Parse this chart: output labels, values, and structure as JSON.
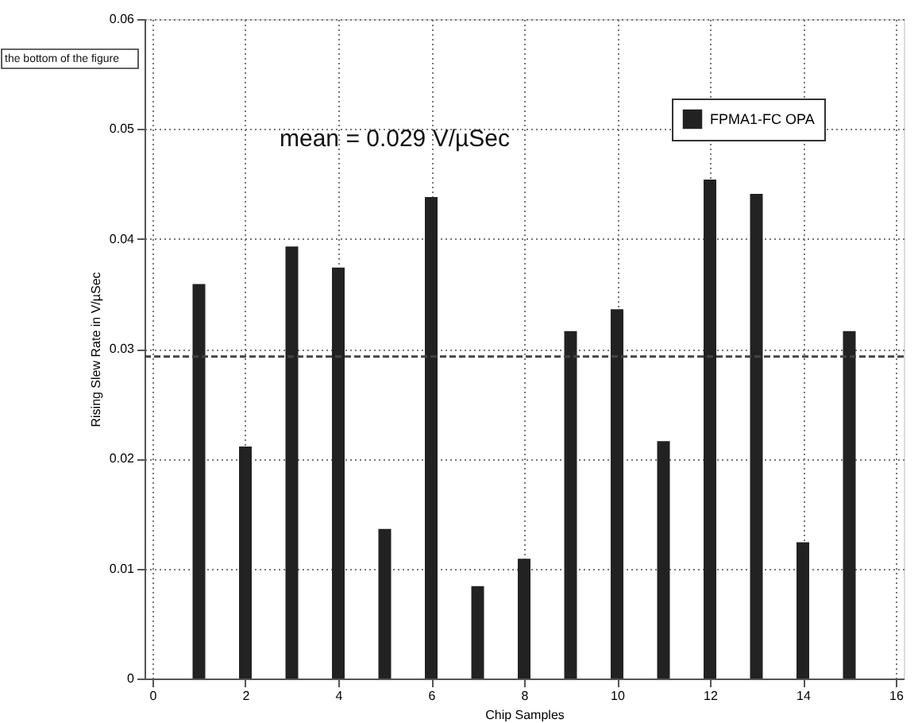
{
  "chart_data": {
    "type": "bar",
    "xlabel": "Chip Samples",
    "ylabel": "Rising Slew Rate in V/µSec",
    "x": [
      1,
      2,
      3,
      4,
      5,
      6,
      7,
      8,
      9,
      10,
      11,
      12,
      13,
      14,
      15
    ],
    "series": [
      {
        "name": "FPMA1-FC OPA",
        "color": "#222222",
        "values": [
          0.0359,
          0.0211,
          0.0393,
          0.0374,
          0.0136,
          0.0438,
          0.0084,
          0.0109,
          0.0316,
          0.0336,
          0.0216,
          0.0454,
          0.0441,
          0.0124,
          0.0316
        ]
      }
    ],
    "xlim": [
      0,
      16
    ],
    "xticks": [
      0,
      2,
      4,
      6,
      8,
      10,
      12,
      14,
      16
    ],
    "ylim": [
      0,
      0.06
    ],
    "yticks": [
      0,
      0.01,
      0.02,
      0.03,
      0.04,
      0.05,
      0.06
    ],
    "ref_lines": [
      {
        "axis": "y",
        "value": 0.0293,
        "color": "#444444",
        "line_style": "dashed"
      }
    ],
    "annotations": [
      "the bottom of the figure",
      "mean = 0.029 V/µSec"
    ],
    "grid": true,
    "legend": "top right"
  }
}
